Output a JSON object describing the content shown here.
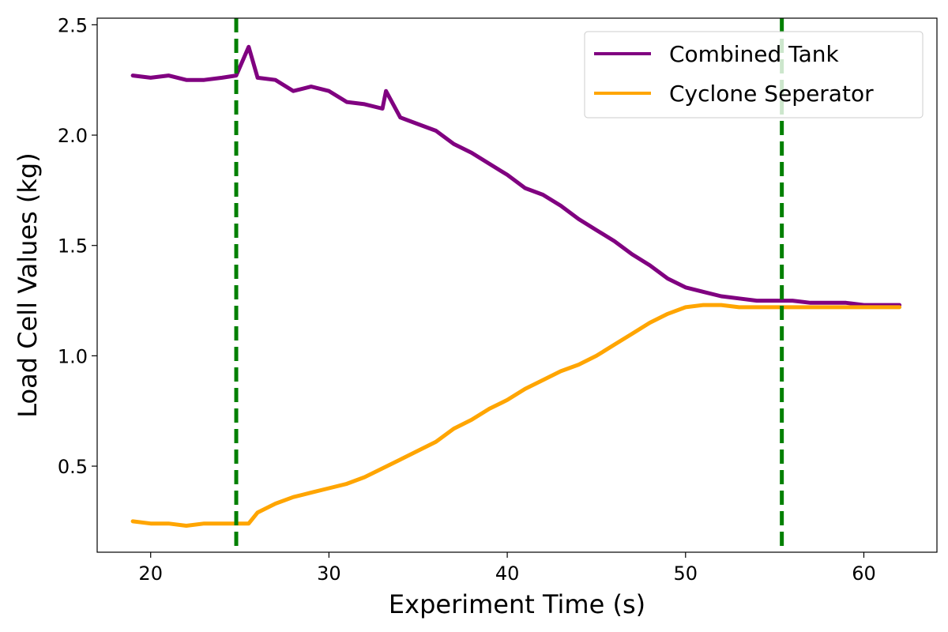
{
  "chart_data": {
    "type": "line",
    "title": "",
    "xlabel": "Experiment Time (s)",
    "ylabel": "Load Cell Values (kg)",
    "xlim": [
      17,
      64.1
    ],
    "ylim": [
      0.11,
      2.53
    ],
    "xticks": [
      20,
      30,
      40,
      50,
      60
    ],
    "yticks": [
      0.5,
      1.0,
      1.5,
      2.0,
      2.5
    ],
    "xtick_labels": [
      "20",
      "30",
      "40",
      "50",
      "60"
    ],
    "ytick_labels": [
      "0.5",
      "1.0",
      "1.5",
      "2.0",
      "2.5"
    ],
    "grid": false,
    "legend_position": "top-right",
    "series": [
      {
        "name": "Combined Tank",
        "color": "#800080",
        "x": [
          19,
          20,
          21,
          22,
          23,
          24,
          24.8,
          25.5,
          26,
          27,
          28,
          29,
          30,
          31,
          32,
          33,
          33.2,
          34,
          35,
          36,
          37,
          38,
          39,
          40,
          41,
          42,
          43,
          44,
          45,
          46,
          47,
          48,
          49,
          50,
          51,
          52,
          53,
          54,
          55,
          56,
          57,
          58,
          59,
          60,
          61,
          62
        ],
        "y": [
          2.27,
          2.26,
          2.27,
          2.25,
          2.25,
          2.26,
          2.27,
          2.4,
          2.26,
          2.25,
          2.2,
          2.22,
          2.2,
          2.15,
          2.14,
          2.12,
          2.2,
          2.08,
          2.05,
          2.02,
          1.96,
          1.92,
          1.87,
          1.82,
          1.76,
          1.73,
          1.68,
          1.62,
          1.57,
          1.52,
          1.46,
          1.41,
          1.35,
          1.31,
          1.29,
          1.27,
          1.26,
          1.25,
          1.25,
          1.25,
          1.24,
          1.24,
          1.24,
          1.23,
          1.23,
          1.23
        ]
      },
      {
        "name": "Cyclone Seperator",
        "color": "#ffa500",
        "x": [
          19,
          20,
          21,
          22,
          23,
          24,
          25,
          25.5,
          26,
          27,
          28,
          29,
          30,
          31,
          32,
          33,
          34,
          35,
          36,
          37,
          38,
          39,
          40,
          41,
          42,
          43,
          44,
          45,
          46,
          47,
          48,
          49,
          50,
          51,
          52,
          53,
          54,
          55,
          56,
          57,
          58,
          59,
          60,
          61,
          62
        ],
        "y": [
          0.25,
          0.24,
          0.24,
          0.23,
          0.24,
          0.24,
          0.24,
          0.24,
          0.29,
          0.33,
          0.36,
          0.38,
          0.4,
          0.42,
          0.45,
          0.49,
          0.53,
          0.57,
          0.61,
          0.67,
          0.71,
          0.76,
          0.8,
          0.85,
          0.89,
          0.93,
          0.96,
          1.0,
          1.05,
          1.1,
          1.15,
          1.19,
          1.22,
          1.23,
          1.23,
          1.22,
          1.22,
          1.22,
          1.22,
          1.22,
          1.22,
          1.22,
          1.22,
          1.22,
          1.22
        ]
      }
    ],
    "vlines": [
      {
        "x": 24.8,
        "color": "#008000",
        "style": "dashed"
      },
      {
        "x": 55.4,
        "color": "#008000",
        "style": "dashed"
      }
    ]
  }
}
